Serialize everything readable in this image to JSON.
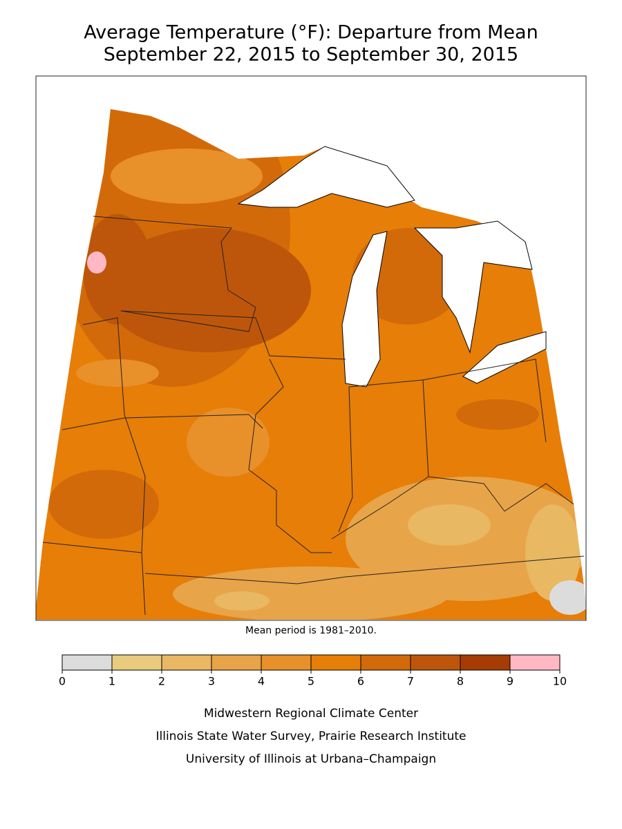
{
  "header": {
    "title": "Average Temperature (°F): Departure from Mean",
    "subtitle": "September 22, 2015 to September 30, 2015"
  },
  "note": "Mean period is 1981–2010.",
  "legend": {
    "ticks": [
      0,
      1,
      2,
      3,
      4,
      5,
      6,
      7,
      8,
      9,
      10
    ],
    "colors": [
      "#dcdcdc",
      "#e8cb7e",
      "#e8b862",
      "#e8a448",
      "#e8902a",
      "#e67e08",
      "#d26a0a",
      "#bd560a",
      "#a53c04",
      "#ffb8c4"
    ]
  },
  "credits": [
    "Midwestern Regional Climate Center",
    "Illinois State Water Survey, Prairie Research Institute",
    "University of Illinois at Urbana–Champaign"
  ]
}
